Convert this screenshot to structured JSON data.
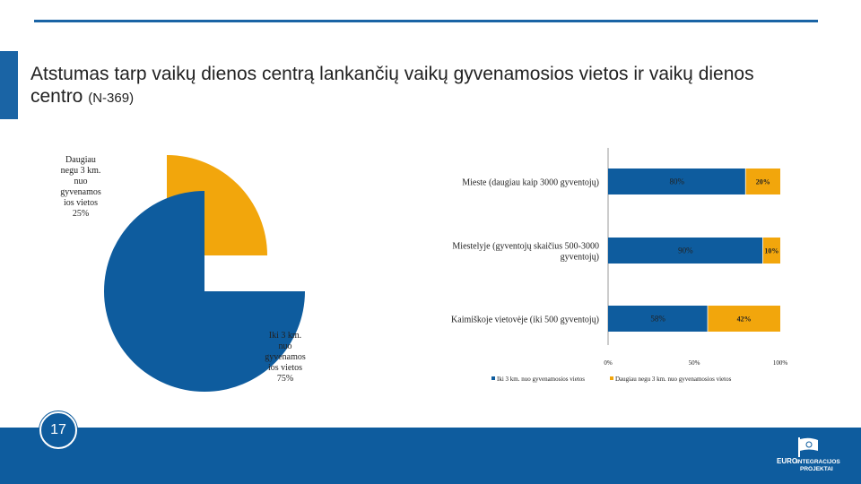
{
  "slide": {
    "title_main": "Atstumas tarp vaikų dienos centrą lankančių vaikų gyvenamosios vietos ir vaikų dienos centro",
    "title_sub": "(N-369)",
    "page_number": "17",
    "logo_text": [
      "EURO",
      "INTEGRACIJOS",
      "PROJEKTAI"
    ]
  },
  "colors": {
    "blue": "#0e5c9e",
    "orange": "#f2a60c",
    "accent": "#1a64a5"
  },
  "chart_data": [
    {
      "type": "pie",
      "slices": [
        {
          "label_lines": [
            "Daugiau",
            "negu 3 km.",
            "nuo",
            "gyvenamos",
            "ios vietos",
            "25%"
          ],
          "value": 25,
          "color": "#f2a60c"
        },
        {
          "label_lines": [
            "Iki 3 km.",
            "nuo",
            "gyvenamos",
            "ios vietos",
            "75%"
          ],
          "value": 75,
          "color": "#0e5c9e"
        }
      ]
    },
    {
      "type": "bar",
      "stacked": true,
      "orientation": "horizontal",
      "categories": [
        [
          "Mieste (daugiau kaip 3000 gyventojų)"
        ],
        [
          "Miestelyje (gyventojų skaičius 500-3000",
          "gyventojų)"
        ],
        [
          "Kaimiškoje vietovėje (iki 500 gyventojų)"
        ]
      ],
      "series": [
        {
          "name": "Iki 3 km. nuo gyvenamosios vietos",
          "values": [
            80,
            90,
            58
          ],
          "labels": [
            "80%",
            "90%",
            "58%"
          ],
          "color": "#0e5c9e"
        },
        {
          "name": "Daugiau negu 3 km. nuo gyvenamosios vietos",
          "values": [
            20,
            10,
            42
          ],
          "labels": [
            "20%",
            "10%",
            "42%"
          ],
          "color": "#f2a60c"
        }
      ],
      "xlim": [
        0,
        100
      ],
      "xticks": [
        "0%",
        "50%",
        "100%"
      ],
      "legend": "bottom"
    }
  ]
}
